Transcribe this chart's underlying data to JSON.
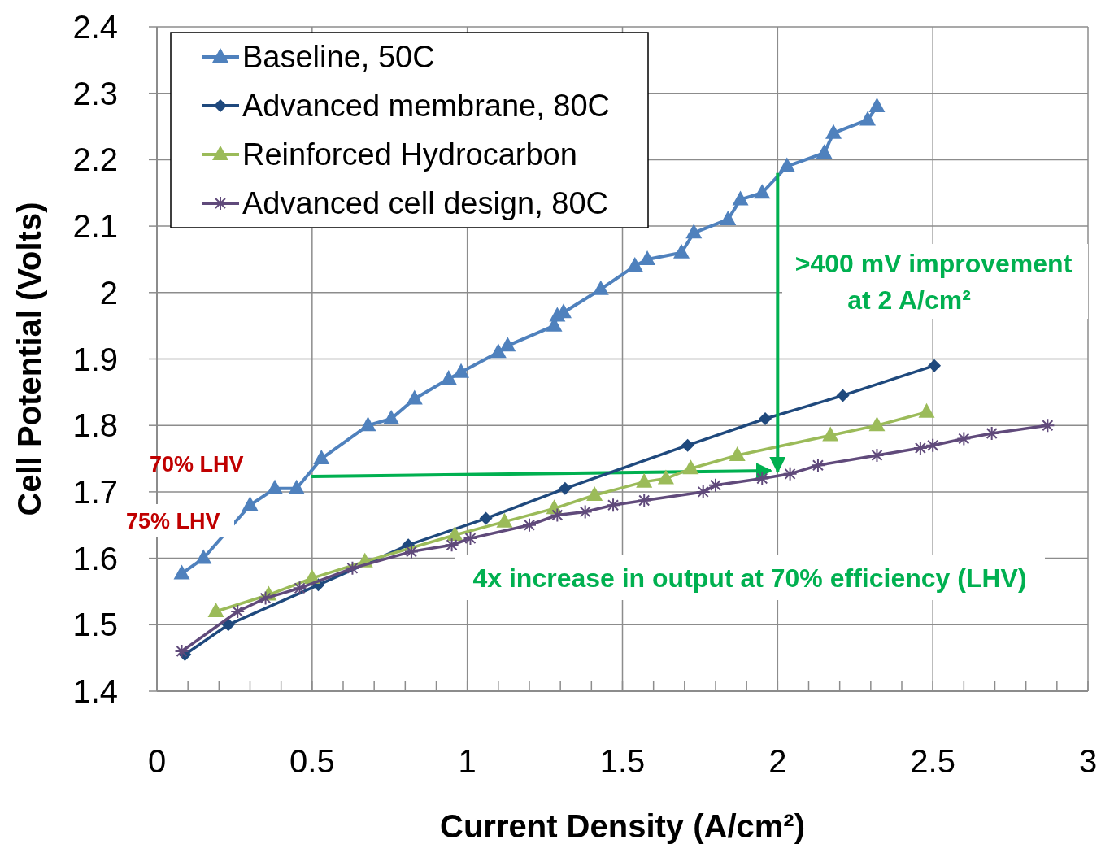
{
  "chart_data": {
    "type": "line",
    "xlabel": "Current Density (A/cm²)",
    "ylabel": "Cell Potential (Volts)",
    "xlim": [
      0,
      3
    ],
    "ylim": [
      1.4,
      2.4
    ],
    "xticks": [
      0,
      {
        "value": 0.1,
        "label": null
      },
      {
        "value": 0.2,
        "label": null
      },
      {
        "value": 0.3,
        "label": null
      },
      {
        "value": 0.4,
        "label": null
      },
      0.5,
      {
        "value": 0.6,
        "label": null
      },
      {
        "value": 0.7,
        "label": null
      },
      {
        "value": 0.8,
        "label": null
      },
      {
        "value": 0.9,
        "label": null
      },
      1,
      {
        "value": 1.1,
        "label": null
      },
      {
        "value": 1.2,
        "label": null
      },
      {
        "value": 1.3,
        "label": null
      },
      {
        "value": 1.4,
        "label": null
      },
      1.5,
      {
        "value": 1.6,
        "label": null
      },
      {
        "value": 1.7,
        "label": null
      },
      {
        "value": 1.8,
        "label": null
      },
      {
        "value": 1.9,
        "label": null
      },
      2,
      {
        "value": 2.1,
        "label": null
      },
      {
        "value": 2.2,
        "label": null
      },
      {
        "value": 2.3,
        "label": null
      },
      {
        "value": 2.4,
        "label": null
      },
      2.5,
      {
        "value": 2.6,
        "label": null
      },
      {
        "value": 2.7,
        "label": null
      },
      {
        "value": 2.8,
        "label": null
      },
      {
        "value": 2.9,
        "label": null
      },
      3
    ],
    "yticks": [
      1.4,
      1.5,
      1.6,
      1.7,
      1.8,
      1.9,
      2,
      2.1,
      2.2,
      2.3,
      2.4
    ],
    "grid": true,
    "legend": "top left",
    "line_style": "solid",
    "series": [
      {
        "name": "Baseline, 50C",
        "color": "#4f81bd",
        "marker": "triangle",
        "x": [
          0.08,
          0.15,
          0.3,
          0.38,
          0.45,
          0.53,
          0.68,
          0.755,
          0.83,
          0.94,
          0.98,
          1.1,
          1.13,
          1.28,
          1.29,
          1.31,
          1.43,
          1.54,
          1.58,
          1.69,
          1.73,
          1.84,
          1.88,
          1.95,
          2.03,
          2.15,
          2.18,
          2.29,
          2.32
        ],
        "values": [
          1.577,
          1.6,
          1.68,
          1.705,
          1.705,
          1.75,
          1.8,
          1.81,
          1.84,
          1.87,
          1.88,
          1.91,
          1.92,
          1.95,
          1.965,
          1.97,
          2.005,
          2.04,
          2.05,
          2.06,
          2.09,
          2.11,
          2.14,
          2.15,
          2.19,
          2.21,
          2.24,
          2.26,
          2.28
        ]
      },
      {
        "name": "Advanced membrane, 80C",
        "color": "#1f497d",
        "marker": "diamond",
        "x": [
          0.09,
          0.23,
          0.52,
          0.81,
          1.06,
          1.315,
          1.71,
          1.96,
          2.21,
          2.505
        ],
        "values": [
          1.455,
          1.5,
          1.56,
          1.62,
          1.66,
          1.705,
          1.77,
          1.81,
          1.845,
          1.89
        ]
      },
      {
        "name": "Reinforced Hydrocarbon",
        "color": "#9bbb59",
        "marker": "triangle",
        "x": [
          0.19,
          0.36,
          0.5,
          0.67,
          0.96,
          1.12,
          1.28,
          1.41,
          1.57,
          1.64,
          1.72,
          1.87,
          2.17,
          2.32,
          2.48
        ],
        "values": [
          1.52,
          1.545,
          1.57,
          1.595,
          1.635,
          1.655,
          1.675,
          1.695,
          1.715,
          1.72,
          1.735,
          1.755,
          1.785,
          1.8,
          1.82
        ]
      },
      {
        "name": "Advanced cell design, 80C",
        "color": "#604a7b",
        "marker": "cross",
        "x": [
          0.08,
          0.26,
          0.35,
          0.46,
          0.63,
          0.82,
          0.95,
          1.01,
          1.2,
          1.29,
          1.38,
          1.47,
          1.57,
          1.76,
          1.8,
          1.95,
          2.04,
          2.13,
          2.32,
          2.46,
          2.5,
          2.6,
          2.69,
          2.87
        ],
        "values": [
          1.46,
          1.52,
          1.54,
          1.555,
          1.585,
          1.61,
          1.62,
          1.63,
          1.65,
          1.665,
          1.67,
          1.68,
          1.687,
          1.7,
          1.71,
          1.72,
          1.727,
          1.74,
          1.755,
          1.766,
          1.77,
          1.78,
          1.788,
          1.8
        ]
      }
    ],
    "annotations": [
      "70% LHV",
      "75% LHV",
      {
        "text": ">400 mV improvement at 2 A/cm²",
        "x": 2,
        "y": 2.18
      },
      "4x increase in output at 70% efficiency (LHV)"
    ]
  }
}
